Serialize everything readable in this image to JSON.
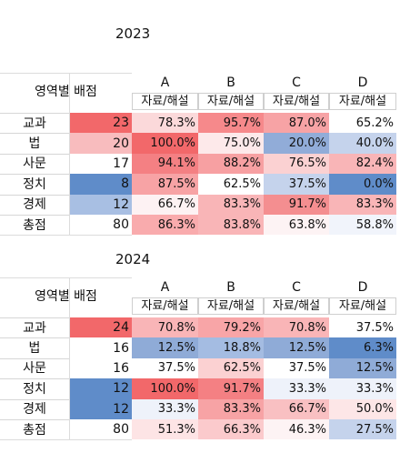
{
  "tables": [
    {
      "year": "2023",
      "area_header": "영역별 배점",
      "groups": [
        "A",
        "B",
        "C",
        "D"
      ],
      "subheader": "자료/해설",
      "rows": [
        {
          "label": "교과",
          "score": "23",
          "values": [
            "78.3%",
            "95.7%",
            "87.0%",
            "65.2%"
          ]
        },
        {
          "label": "법",
          "score": "20",
          "values": [
            "100.0%",
            "75.0%",
            "20.0%",
            "40.0%"
          ]
        },
        {
          "label": "사문",
          "score": "17",
          "values": [
            "94.1%",
            "88.2%",
            "76.5%",
            "82.4%"
          ]
        },
        {
          "label": "정치",
          "score": "8",
          "values": [
            "87.5%",
            "62.5%",
            "37.5%",
            "0.0%"
          ]
        },
        {
          "label": "경제",
          "score": "12",
          "values": [
            "66.7%",
            "83.3%",
            "91.7%",
            "83.3%"
          ]
        },
        {
          "label": "총점",
          "score": "80",
          "values": [
            "86.3%",
            "83.8%",
            "63.8%",
            "58.8%"
          ]
        }
      ],
      "score_colors": [
        "#f2686a",
        "#f8bcbe",
        "#ffffff",
        "#5f8cc9",
        "#a8bfe3",
        "#ffffff"
      ],
      "value_colors": [
        [
          "#fbd9da",
          "#f6898b",
          "#f7a3a5",
          "#ffffff"
        ],
        [
          "#f2686a",
          "#fde9ea",
          "#91acd8",
          "#c5d3ec"
        ],
        [
          "#f48083",
          "#f7a0a2",
          "#fbd1d2",
          "#f9b5b7"
        ],
        [
          "#f7a3a5",
          "#ffffff",
          "#c5d3ec",
          "#5f8cc9"
        ],
        [
          "#fdf2f3",
          "#f9b5b7",
          "#f48e90",
          "#f9b5b7"
        ],
        [
          "#f9abad",
          "#f9b5b7",
          "#fdf3f4",
          "#f1f4fb"
        ]
      ]
    },
    {
      "year": "2024",
      "area_header": "영역별 배점",
      "groups": [
        "A",
        "B",
        "C",
        "D"
      ],
      "subheader": "자료/해설",
      "rows": [
        {
          "label": "교과",
          "score": "24",
          "values": [
            "70.8%",
            "79.2%",
            "70.8%",
            "37.5%"
          ]
        },
        {
          "label": "법",
          "score": "16",
          "values": [
            "12.5%",
            "18.8%",
            "12.5%",
            "6.3%"
          ]
        },
        {
          "label": "사문",
          "score": "16",
          "values": [
            "37.5%",
            "62.5%",
            "37.5%",
            "12.5%"
          ]
        },
        {
          "label": "정치",
          "score": "12",
          "values": [
            "100.0%",
            "91.7%",
            "33.3%",
            "33.3%"
          ]
        },
        {
          "label": "경제",
          "score": "12",
          "values": [
            "33.3%",
            "83.3%",
            "66.7%",
            "50.0%"
          ]
        },
        {
          "label": "총점",
          "score": "80",
          "values": [
            "51.3%",
            "66.3%",
            "46.3%",
            "27.5%"
          ]
        }
      ],
      "score_colors": [
        "#f2686a",
        "#ffffff",
        "#ffffff",
        "#5f8cc9",
        "#5f8cc9",
        "#ffffff"
      ],
      "value_colors": [
        [
          "#f9b5b7",
          "#f8a5a7",
          "#f9b5b7",
          "#ffffff"
        ],
        [
          "#8fabd7",
          "#a4bce2",
          "#8fabd7",
          "#5f8cc9"
        ],
        [
          "#ffffff",
          "#fbd1d2",
          "#ffffff",
          "#8fabd7"
        ],
        [
          "#f2686a",
          "#f48083",
          "#eef2fa",
          "#eef2fa"
        ],
        [
          "#eef2fa",
          "#f7a3a5",
          "#f9c0c2",
          "#fde6e7"
        ],
        [
          "#fde4e5",
          "#fbcacc",
          "#fdf3f4",
          "#c5d3ec"
        ]
      ]
    }
  ]
}
